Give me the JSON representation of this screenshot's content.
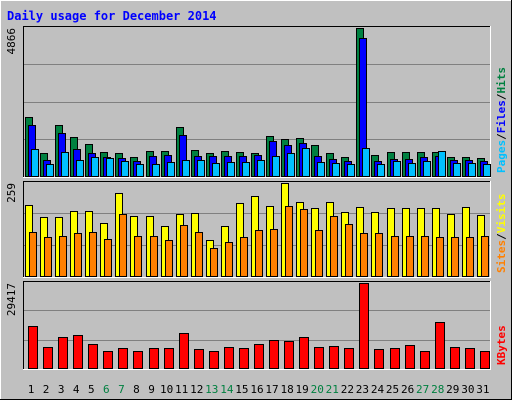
{
  "title": "Daily usage for December 2014",
  "chart_data": [
    {
      "type": "bar",
      "title": "Daily usage for December 2014",
      "categories": [
        "1",
        "2",
        "3",
        "4",
        "5",
        "6",
        "7",
        "8",
        "9",
        "10",
        "11",
        "12",
        "13",
        "14",
        "15",
        "16",
        "17",
        "18",
        "19",
        "20",
        "21",
        "22",
        "23",
        "24",
        "25",
        "26",
        "27",
        "28",
        "29",
        "30",
        "31"
      ],
      "weekend_days": [
        "6",
        "7",
        "13",
        "14",
        "20",
        "21",
        "27",
        "28"
      ],
      "ymax": 4866,
      "ymax_label": "4866",
      "right_label": [
        "Pages",
        "Files",
        "Hits"
      ],
      "series": [
        {
          "name": "Hits",
          "color": "#008040",
          "values": [
            1955,
            790,
            1700,
            1320,
            1090,
            815,
            770,
            640,
            840,
            840,
            1640,
            880,
            790,
            865,
            830,
            775,
            1340,
            1235,
            1275,
            1055,
            780,
            650,
            4866,
            730,
            815,
            815,
            815,
            810,
            640,
            640,
            610
          ]
        },
        {
          "name": "Files",
          "color": "#0000ff",
          "values": [
            1690,
            560,
            1440,
            930,
            790,
            655,
            610,
            510,
            680,
            710,
            1370,
            690,
            690,
            690,
            670,
            730,
            1175,
            1050,
            1120,
            690,
            580,
            510,
            4540,
            510,
            600,
            600,
            655,
            675,
            545,
            545,
            530
          ]
        },
        {
          "name": "Pages",
          "color": "#00c0ff",
          "values": [
            930,
            430,
            830,
            560,
            650,
            610,
            530,
            440,
            430,
            480,
            560,
            560,
            460,
            500,
            480,
            550,
            670,
            780,
            950,
            475,
            450,
            430,
            950,
            430,
            510,
            470,
            520,
            860,
            450,
            470,
            420
          ]
        }
      ]
    },
    {
      "type": "bar",
      "categories": [
        "1",
        "2",
        "3",
        "4",
        "5",
        "6",
        "7",
        "8",
        "9",
        "10",
        "11",
        "12",
        "13",
        "14",
        "15",
        "16",
        "17",
        "18",
        "19",
        "20",
        "21",
        "22",
        "23",
        "24",
        "25",
        "26",
        "27",
        "28",
        "29",
        "30",
        "31"
      ],
      "ymax": 259,
      "ymax_label": "259",
      "right_label": [
        "Sites",
        "Visits"
      ],
      "series": [
        {
          "name": "Visits",
          "color": "#ffff00",
          "values": [
            199,
            165,
            164,
            181,
            183,
            150,
            231,
            167,
            167,
            140,
            174,
            176,
            103,
            140,
            205,
            222,
            197,
            259,
            206,
            189,
            206,
            180,
            192,
            180,
            190,
            191,
            190,
            190,
            174,
            193,
            172
          ]
        },
        {
          "name": "Sites",
          "color": "#ff8000",
          "values": [
            124,
            110,
            113,
            120,
            125,
            105,
            174,
            114,
            114,
            101,
            142,
            123,
            79,
            96,
            109,
            130,
            131,
            197,
            186,
            129,
            167,
            146,
            120,
            121,
            112,
            112,
            112,
            111,
            111,
            110,
            113
          ]
        }
      ]
    },
    {
      "type": "bar",
      "categories": [
        "1",
        "2",
        "3",
        "4",
        "5",
        "6",
        "7",
        "8",
        "9",
        "10",
        "11",
        "12",
        "13",
        "14",
        "15",
        "16",
        "17",
        "18",
        "19",
        "20",
        "21",
        "22",
        "23",
        "24",
        "25",
        "26",
        "27",
        "28",
        "29",
        "30",
        "31"
      ],
      "ymax": 29417,
      "ymax_label": "29417",
      "right_label": [
        "KBytes"
      ],
      "series": [
        {
          "name": "KBytes",
          "color": "#ff0000",
          "values": [
            14700,
            7500,
            10900,
            11800,
            8700,
            6300,
            7300,
            6300,
            7300,
            7300,
            12300,
            6800,
            6000,
            7500,
            7300,
            8700,
            10000,
            9500,
            10900,
            7500,
            7800,
            7300,
            29417,
            6800,
            7300,
            8200,
            6300,
            16100,
            7500,
            7300,
            6000
          ]
        }
      ]
    }
  ]
}
